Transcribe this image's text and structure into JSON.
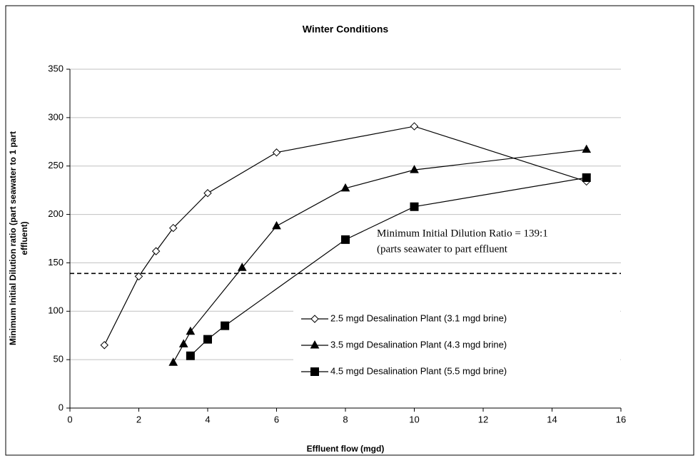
{
  "chart_data": {
    "type": "line",
    "title": "Winter Conditions",
    "x_label": "Effluent flow (mgd)",
    "y_label": [
      "Minimum Initial Dilution ratio (part seawater to 1 part",
      "effluent)"
    ],
    "xlim": [
      0,
      16
    ],
    "xticks": [
      0,
      2,
      4,
      6,
      8,
      10,
      12,
      14,
      16
    ],
    "ylim": [
      0,
      350
    ],
    "yticks": [
      0,
      50,
      100,
      150,
      200,
      250,
      300,
      350
    ],
    "grid": true,
    "legend": "lower right",
    "reference_line": {
      "value": 139,
      "style": "dashed",
      "color": "#000000"
    },
    "annotations": [
      "Minimum Initial Dilution Ratio = 139:1",
      "(parts seawater to part effluent"
    ],
    "series": [
      {
        "name": "2.5 mgd Desalination Plant (3.1 mgd brine)",
        "color": "#000000",
        "marker": "diamond",
        "marker_fill": "#ffffff",
        "x": [
          1,
          2,
          2.5,
          3,
          4,
          6,
          10,
          15
        ],
        "values": [
          65,
          136,
          162,
          186,
          222,
          264,
          291,
          234
        ]
      },
      {
        "name": "3.5 mgd Desalination Plant (4.3 mgd brine)",
        "color": "#000000",
        "marker": "triangle",
        "marker_fill": "#000000",
        "x": [
          3,
          3.3,
          3.5,
          5,
          6,
          8,
          10,
          15
        ],
        "values": [
          47,
          66,
          79,
          145,
          188,
          227,
          246,
          267
        ]
      },
      {
        "name": "4.5 mgd Desalination Plant (5.5 mgd brine)",
        "color": "#000000",
        "marker": "square",
        "marker_fill": "#000000",
        "x": [
          3.5,
          4,
          4.5,
          8,
          10,
          15
        ],
        "values": [
          54,
          71,
          85,
          174,
          208,
          238
        ]
      }
    ]
  }
}
